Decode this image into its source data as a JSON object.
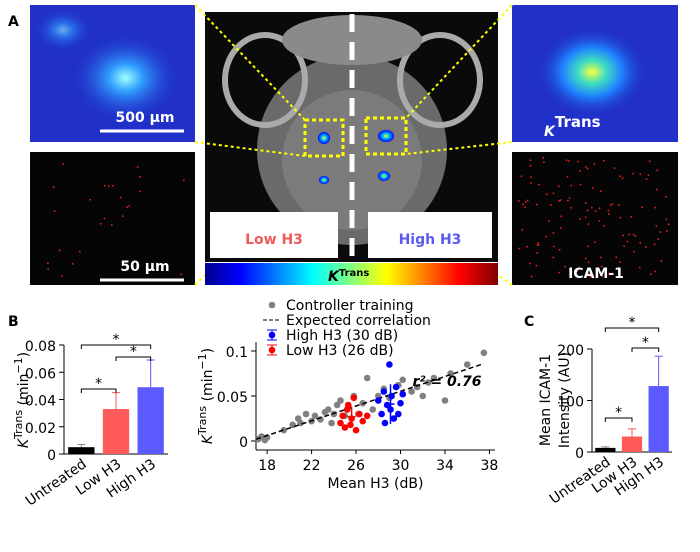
{
  "panel_labels": [
    "A",
    "B",
    "C"
  ],
  "panel_a": {
    "scale_top": "500 µm",
    "scale_bottom": "50 µm",
    "low": "Low H3",
    "high": "High H3",
    "ktrans_image": [
      {
        "text": "K",
        "style": "italic"
      },
      {
        "text": "Trans",
        "style": "sup"
      }
    ],
    "ktrans_bar": [
      {
        "text": "K",
        "style": "italic"
      },
      {
        "text": "Trans",
        "style": "sup"
      }
    ],
    "icam": "ICAM-1"
  },
  "chart_data": [
    {
      "type": "bar",
      "categories": [
        "Untreated",
        "Low H3",
        "High H3"
      ],
      "values": [
        0.005,
        0.033,
        0.049
      ],
      "errors": [
        0.002,
        0.012,
        0.02
      ],
      "colors": [
        "#000000",
        "#ff5a5a",
        "#5a5aff"
      ],
      "ylim": [
        0,
        0.08
      ],
      "yticks": [
        0,
        0.02,
        0.04,
        0.06,
        0.08
      ],
      "ylabel_parts": [
        {
          "text": "K",
          "style": "italic"
        },
        {
          "text": "Trans",
          "style": "sup"
        },
        {
          "text": " (min"
        },
        {
          "text": "−1",
          "style": "sup"
        },
        {
          "text": ")"
        }
      ],
      "annotations": [
        "*",
        "*",
        "*"
      ]
    },
    {
      "type": "scatter",
      "xlim": [
        17,
        38.5
      ],
      "ylim": [
        -0.01,
        0.11
      ],
      "xticks": [
        18,
        22,
        26,
        30,
        34,
        38
      ],
      "yticks": [
        0,
        0.05,
        0.1
      ],
      "xlabel": "Mean H3 (dB)",
      "ylabel_parts": [
        {
          "text": "K",
          "style": "italic"
        },
        {
          "text": "Trans",
          "style": "sup"
        },
        {
          "text": " (min"
        },
        {
          "text": "−1",
          "style": "sup"
        },
        {
          "text": ")"
        }
      ],
      "annotation": "r² = 0.76",
      "series": [
        {
          "name": "Controller training",
          "color": "#808080",
          "kind": "points",
          "x": [
            17.2,
            17.5,
            17.8,
            18.0,
            19.5,
            20.3,
            20.8,
            21.0,
            21.5,
            22.0,
            22.3,
            22.8,
            23.2,
            23.5,
            23.8,
            24.0,
            24.3,
            24.6,
            25.0,
            25.3,
            25.8,
            26.2,
            26.6,
            27.0,
            27.5,
            28.0,
            28.5,
            29.0,
            29.8,
            30.2,
            31.0,
            31.5,
            32.0,
            32.5,
            33.0,
            34.0,
            34.5,
            36.0,
            37.5
          ],
          "values": [
            0.002,
            0.005,
            0.001,
            0.004,
            0.012,
            0.018,
            0.025,
            0.02,
            0.03,
            0.022,
            0.028,
            0.024,
            0.032,
            0.035,
            0.02,
            0.03,
            0.04,
            0.045,
            0.028,
            0.038,
            0.05,
            0.03,
            0.042,
            0.07,
            0.035,
            0.05,
            0.058,
            0.048,
            0.062,
            0.068,
            0.055,
            0.06,
            0.05,
            0.065,
            0.07,
            0.045,
            0.075,
            0.085,
            0.098
          ]
        },
        {
          "name": "Expected correlation",
          "color": "#000000",
          "kind": "dashed-line",
          "x": [
            17,
            37.5
          ],
          "values": [
            0.002,
            0.086
          ]
        },
        {
          "name": "High H3 (30 dB)",
          "color": "#0000ff",
          "kind": "points",
          "x": [
            28.0,
            28.3,
            28.5,
            28.6,
            28.8,
            29.0,
            29.1,
            29.2,
            29.4,
            29.6,
            29.8,
            30.0,
            30.2
          ],
          "values": [
            0.045,
            0.03,
            0.055,
            0.02,
            0.04,
            0.085,
            0.035,
            0.05,
            0.025,
            0.06,
            0.03,
            0.042,
            0.052
          ],
          "mean_x": 29.1,
          "mean": 0.041,
          "mean_error": 0.022
        },
        {
          "name": "Low H3 (26 dB)",
          "color": "#ff0000",
          "kind": "points",
          "x": [
            24.6,
            24.8,
            25.0,
            25.2,
            25.3,
            25.5,
            25.6,
            25.8,
            26.0,
            26.3,
            26.6,
            27.0
          ],
          "values": [
            0.02,
            0.028,
            0.015,
            0.035,
            0.04,
            0.018,
            0.025,
            0.048,
            0.012,
            0.03,
            0.022,
            0.028
          ],
          "mean_x": 25.6,
          "mean": 0.027,
          "mean_error": 0.011
        }
      ]
    },
    {
      "type": "bar",
      "categories": [
        "Untreated",
        "Low H3",
        "High H3"
      ],
      "values": [
        8,
        30,
        128
      ],
      "errors": [
        2,
        15,
        58
      ],
      "colors": [
        "#000000",
        "#ff5a5a",
        "#5a5aff"
      ],
      "ylim": [
        0,
        200
      ],
      "yticks": [
        0,
        100,
        200
      ],
      "ylabel_lines": [
        "Mean ICAM-1",
        "Intensity (AU)"
      ],
      "annotations": [
        "*",
        "*",
        "*"
      ]
    }
  ]
}
